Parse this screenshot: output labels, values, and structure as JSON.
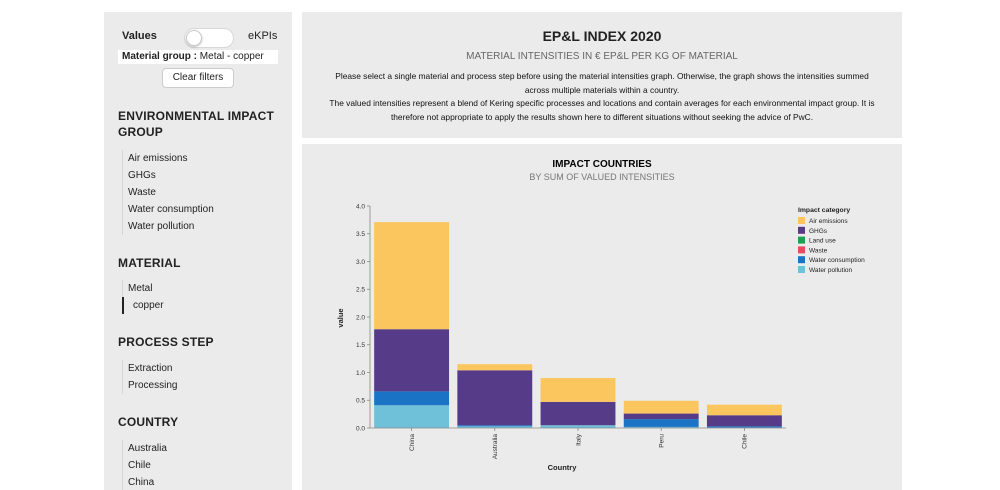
{
  "sidebar": {
    "toggle": {
      "left_label": "Values",
      "right_label": "eKPIs"
    },
    "filter_tag": {
      "key": "Material group :",
      "value": "Metal - copper"
    },
    "clear_filters_label": "Clear filters",
    "sections": {
      "impact": {
        "title_line1": "ENVIRONMENTAL IMPACT",
        "title_line2": "GROUP",
        "items": [
          "Air emissions",
          "GHGs",
          "Waste",
          "Water consumption",
          "Water pollution"
        ]
      },
      "material": {
        "title": "MATERIAL",
        "items": [
          "Metal",
          "copper"
        ]
      },
      "process": {
        "title": "PROCESS STEP",
        "items": [
          "Extraction",
          "Processing"
        ]
      },
      "country": {
        "title": "COUNTRY",
        "items": [
          "Australia",
          "Chile",
          "China"
        ]
      }
    }
  },
  "header": {
    "title": "EP&L INDEX 2020",
    "subtitle": "MATERIAL INTENSITIES IN € EP&L PER KG OF MATERIAL",
    "desc1": "Please select a single material and process step before using the material intensities graph. Otherwise, the graph shows the intensities summed",
    "desc2": "across multiple materials within a country.",
    "desc3": "The valued intensities represent a blend of Kering specific processes and locations and contain averages for each environmental impact group. It is",
    "desc4": "therefore not appropriate to apply the results shown here to different situations without seeking the advice of PwC."
  },
  "chart_data": {
    "type": "bar",
    "stacked": true,
    "title": "IMPACT COUNTRIES",
    "subtitle": "BY SUM OF VALUED INTENSITIES",
    "xlabel": "Country",
    "ylabel": "value",
    "ylim": [
      0,
      4.0
    ],
    "yticks": [
      0.0,
      0.5,
      1.0,
      1.5,
      2.0,
      2.5,
      3.0,
      3.5,
      4.0
    ],
    "categories": [
      "China",
      "Australia",
      "Italy",
      "Peru",
      "Chile"
    ],
    "legend_title": "Impact category",
    "series": [
      {
        "name": "Water pollution",
        "color": "#6fc0d9",
        "values": [
          0.41,
          0.03,
          0.05,
          0.02,
          0.01
        ]
      },
      {
        "name": "Water consumption",
        "color": "#1a73c4",
        "values": [
          0.25,
          0.02,
          0.0,
          0.14,
          0.02
        ]
      },
      {
        "name": "Waste",
        "color": "#e84a5f",
        "values": [
          0.0,
          0.0,
          0.0,
          0.0,
          0.0
        ]
      },
      {
        "name": "Land use",
        "color": "#20a052",
        "values": [
          0.0,
          0.0,
          0.0,
          0.0,
          0.0
        ]
      },
      {
        "name": "GHGs",
        "color": "#553b88",
        "values": [
          1.12,
          0.99,
          0.42,
          0.1,
          0.2
        ]
      },
      {
        "name": "Air emissions",
        "color": "#fcc65e",
        "values": [
          1.93,
          0.11,
          0.43,
          0.23,
          0.19
        ]
      }
    ],
    "legend_order": [
      "Air emissions",
      "GHGs",
      "Land use",
      "Waste",
      "Water consumption",
      "Water pollution"
    ]
  }
}
